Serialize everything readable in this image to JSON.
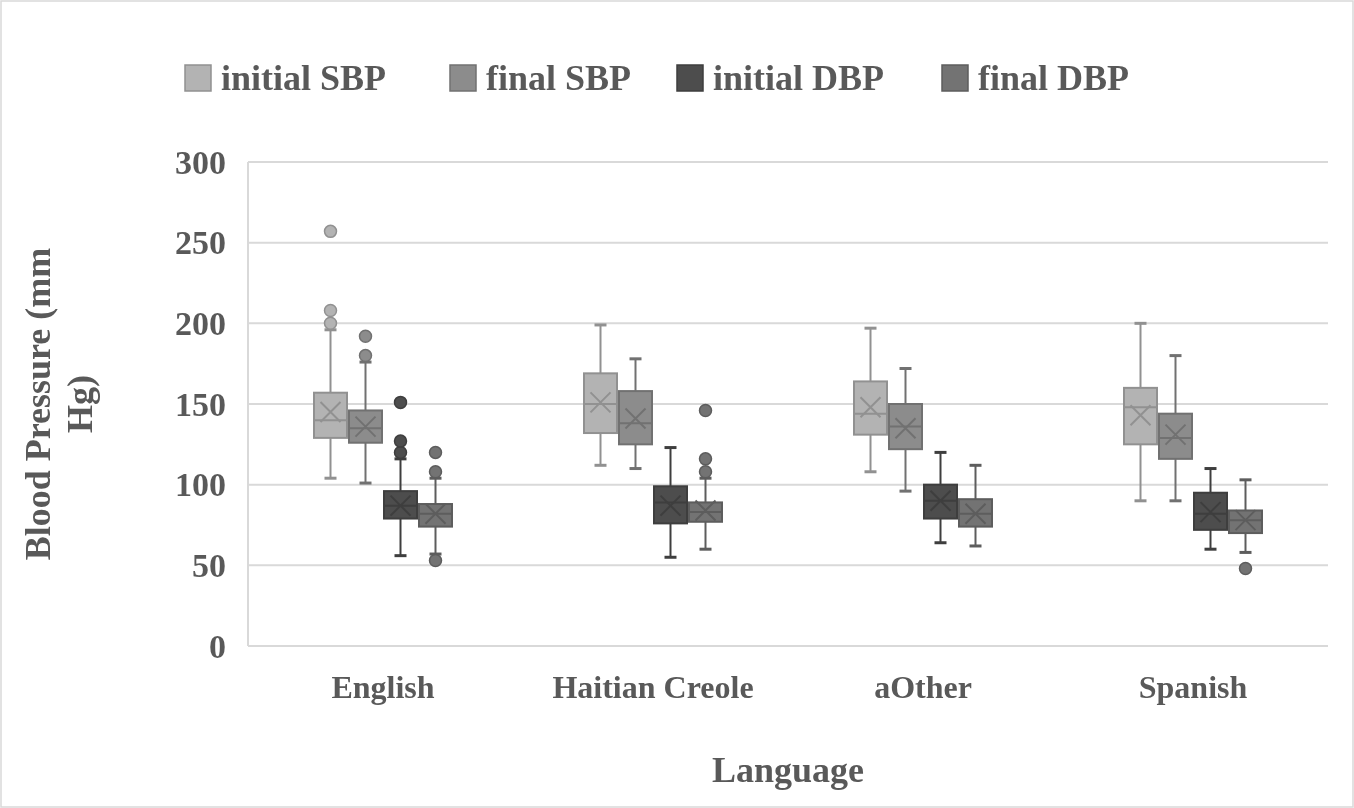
{
  "chart_data": {
    "type": "box",
    "xlabel": "Language",
    "ylabel": "Blood Pressure (mm Hg)",
    "categories": [
      "English",
      "Haitian Creole",
      "aOther",
      "Spanish"
    ],
    "ylim": [
      0,
      300
    ],
    "yticks": [
      0,
      50,
      100,
      150,
      200,
      250,
      300
    ],
    "grid": "y",
    "legend": "top",
    "series": [
      {
        "name": "initial SBP",
        "color": "#b3b3b3",
        "boxes": [
          {
            "low": 104,
            "q1": 129,
            "median": 140,
            "q3": 157,
            "high": 196,
            "mean": 145,
            "outliers": [
              200,
              208,
              257
            ]
          },
          {
            "low": 112,
            "q1": 132,
            "median": 150,
            "q3": 169,
            "high": 199,
            "mean": 151
          },
          {
            "low": 108,
            "q1": 131,
            "median": 144,
            "q3": 164,
            "high": 197,
            "mean": 148
          },
          {
            "low": 90,
            "q1": 125,
            "median": 148,
            "q3": 160,
            "high": 200,
            "mean": 143
          }
        ]
      },
      {
        "name": "final SBP",
        "color": "#8c8c8c",
        "boxes": [
          {
            "low": 101,
            "q1": 126,
            "median": 135,
            "q3": 146,
            "high": 176,
            "mean": 136,
            "outliers": [
              180,
              192
            ]
          },
          {
            "low": 110,
            "q1": 125,
            "median": 138,
            "q3": 158,
            "high": 178,
            "mean": 141
          },
          {
            "low": 96,
            "q1": 122,
            "median": 136,
            "q3": 150,
            "high": 172,
            "mean": 135
          },
          {
            "low": 90,
            "q1": 116,
            "median": 129,
            "q3": 144,
            "high": 180,
            "mean": 131
          }
        ]
      },
      {
        "name": "initial DBP",
        "color": "#4d4d4d",
        "boxes": [
          {
            "low": 56,
            "q1": 79,
            "median": 87,
            "q3": 96,
            "high": 116,
            "mean": 87,
            "outliers": [
              120,
              127,
              151
            ]
          },
          {
            "low": 55,
            "q1": 76,
            "median": 89,
            "q3": 99,
            "high": 123,
            "mean": 87
          },
          {
            "low": 64,
            "q1": 79,
            "median": 90,
            "q3": 100,
            "high": 120,
            "mean": 90
          },
          {
            "low": 60,
            "q1": 72,
            "median": 82,
            "q3": 95,
            "high": 110,
            "mean": 83
          }
        ]
      },
      {
        "name": "final DBP",
        "color": "#737373",
        "boxes": [
          {
            "low": 57,
            "q1": 74,
            "median": 82,
            "q3": 88,
            "high": 104,
            "mean": 82,
            "outliers": [
              53,
              108,
              120
            ]
          },
          {
            "low": 60,
            "q1": 77,
            "median": 83,
            "q3": 89,
            "high": 104,
            "mean": 84,
            "outliers": [
              108,
              116,
              146
            ]
          },
          {
            "low": 62,
            "q1": 74,
            "median": 82,
            "q3": 91,
            "high": 112,
            "mean": 82
          },
          {
            "low": 58,
            "q1": 70,
            "median": 78,
            "q3": 84,
            "high": 103,
            "mean": 78,
            "outliers": [
              48
            ]
          }
        ]
      }
    ]
  }
}
